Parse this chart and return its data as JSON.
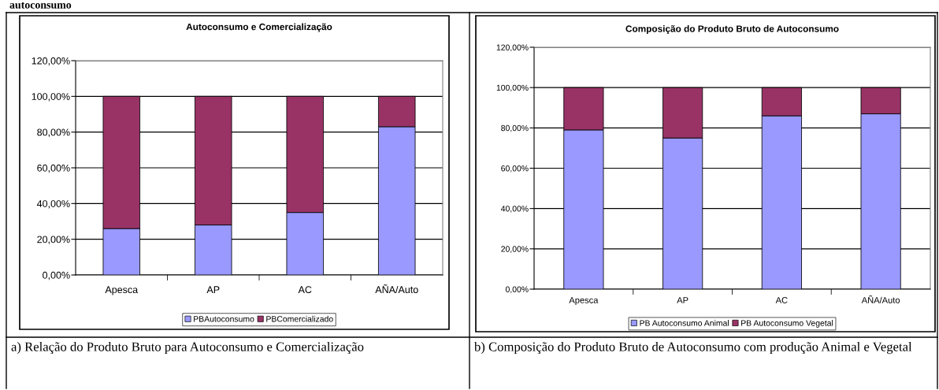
{
  "chart_data": [
    {
      "type": "bar",
      "stacked": true,
      "title": "Autoconsumo e Comercialização",
      "categories": [
        "Apesca",
        "AP",
        "AC",
        "AÑA/Auto"
      ],
      "series": [
        {
          "name": "PBAutoconsumo",
          "color": "#9999ff",
          "values": [
            26,
            28,
            35,
            83
          ]
        },
        {
          "name": "PBComercializado",
          "color": "#993366",
          "values": [
            74,
            72,
            65,
            17
          ]
        }
      ],
      "ylim": [
        0,
        120
      ],
      "yticks": [
        {
          "value": 0,
          "label": "0,00%"
        },
        {
          "value": 20,
          "label": "20,00%"
        },
        {
          "value": 40,
          "label": "40,00%"
        },
        {
          "value": 60,
          "label": "60,00%"
        },
        {
          "value": 80,
          "label": "80,00%"
        },
        {
          "value": 100,
          "label": "100,00%"
        },
        {
          "value": 120,
          "label": "120,00%"
        }
      ],
      "grid": "y",
      "legend": "bottom",
      "annotations": [
        "autoconsumo",
        "a) Relação do Produto Bruto para Autoconsumo e Comercialização"
      ]
    },
    {
      "type": "bar",
      "stacked": true,
      "title": "Composição do Produto Bruto de Autoconsumo",
      "categories": [
        "Apesca",
        "AP",
        "AC",
        "AÑA/Auto"
      ],
      "series": [
        {
          "name": "PB Autoconsumo Animal",
          "color": "#9999ff",
          "values": [
            79,
            75,
            86,
            87
          ]
        },
        {
          "name": "PB Autoconsumo Vegetal",
          "color": "#993366",
          "values": [
            21,
            25,
            14,
            13
          ]
        }
      ],
      "ylim": [
        0,
        120
      ],
      "yticks": [
        {
          "value": 0,
          "label": "0,00%"
        },
        {
          "value": 20,
          "label": "20,00%"
        },
        {
          "value": 40,
          "label": "40,00%"
        },
        {
          "value": 60,
          "label": "60,00%"
        },
        {
          "value": 80,
          "label": "80,00%"
        },
        {
          "value": 100,
          "label": "100,00%"
        },
        {
          "value": 120,
          "label": "120,00%"
        }
      ],
      "grid": "y",
      "legend": "bottom",
      "annotations": [
        "b) Composição do Produto Bruto de Autoconsumo com produção Animal e Vegetal"
      ]
    }
  ]
}
